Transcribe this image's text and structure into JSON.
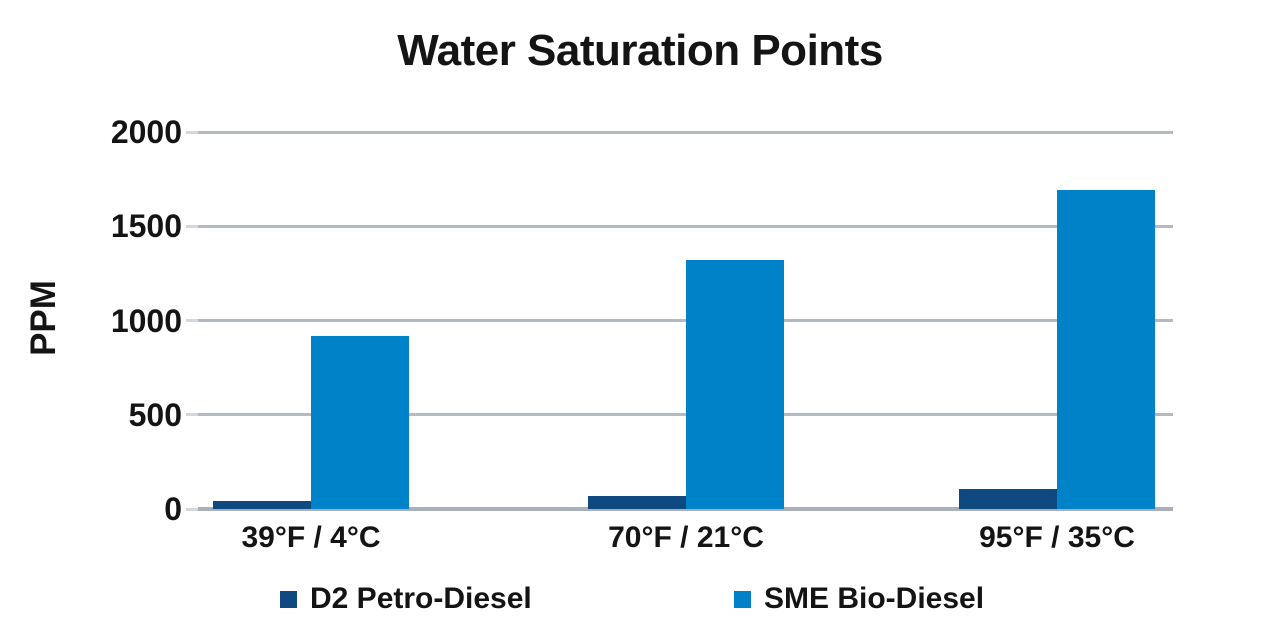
{
  "title": "Water Saturation Points",
  "chart_data": {
    "type": "bar",
    "title": "Water Saturation Points",
    "xlabel": "",
    "ylabel": "PPM",
    "categories": [
      "39°F / 4°C",
      "70°F / 21°C",
      "95°F / 35°C"
    ],
    "series": [
      {
        "name": "D2 Petro-Diesel",
        "color": "#0E4A7F",
        "values": [
          40,
          70,
          105
        ]
      },
      {
        "name": "SME Bio-Diesel",
        "color": "#0082C8",
        "values": [
          920,
          1320,
          1690
        ]
      }
    ],
    "ylim": [
      0,
      2000
    ],
    "yticks": [
      0,
      500,
      1000,
      1500,
      2000
    ],
    "grid": true,
    "gridline_color": "#b3bac1",
    "axis_line_color": "#a9b0b7",
    "legend_position": "bottom",
    "background": "#ffffff",
    "text_color": "#141414"
  }
}
